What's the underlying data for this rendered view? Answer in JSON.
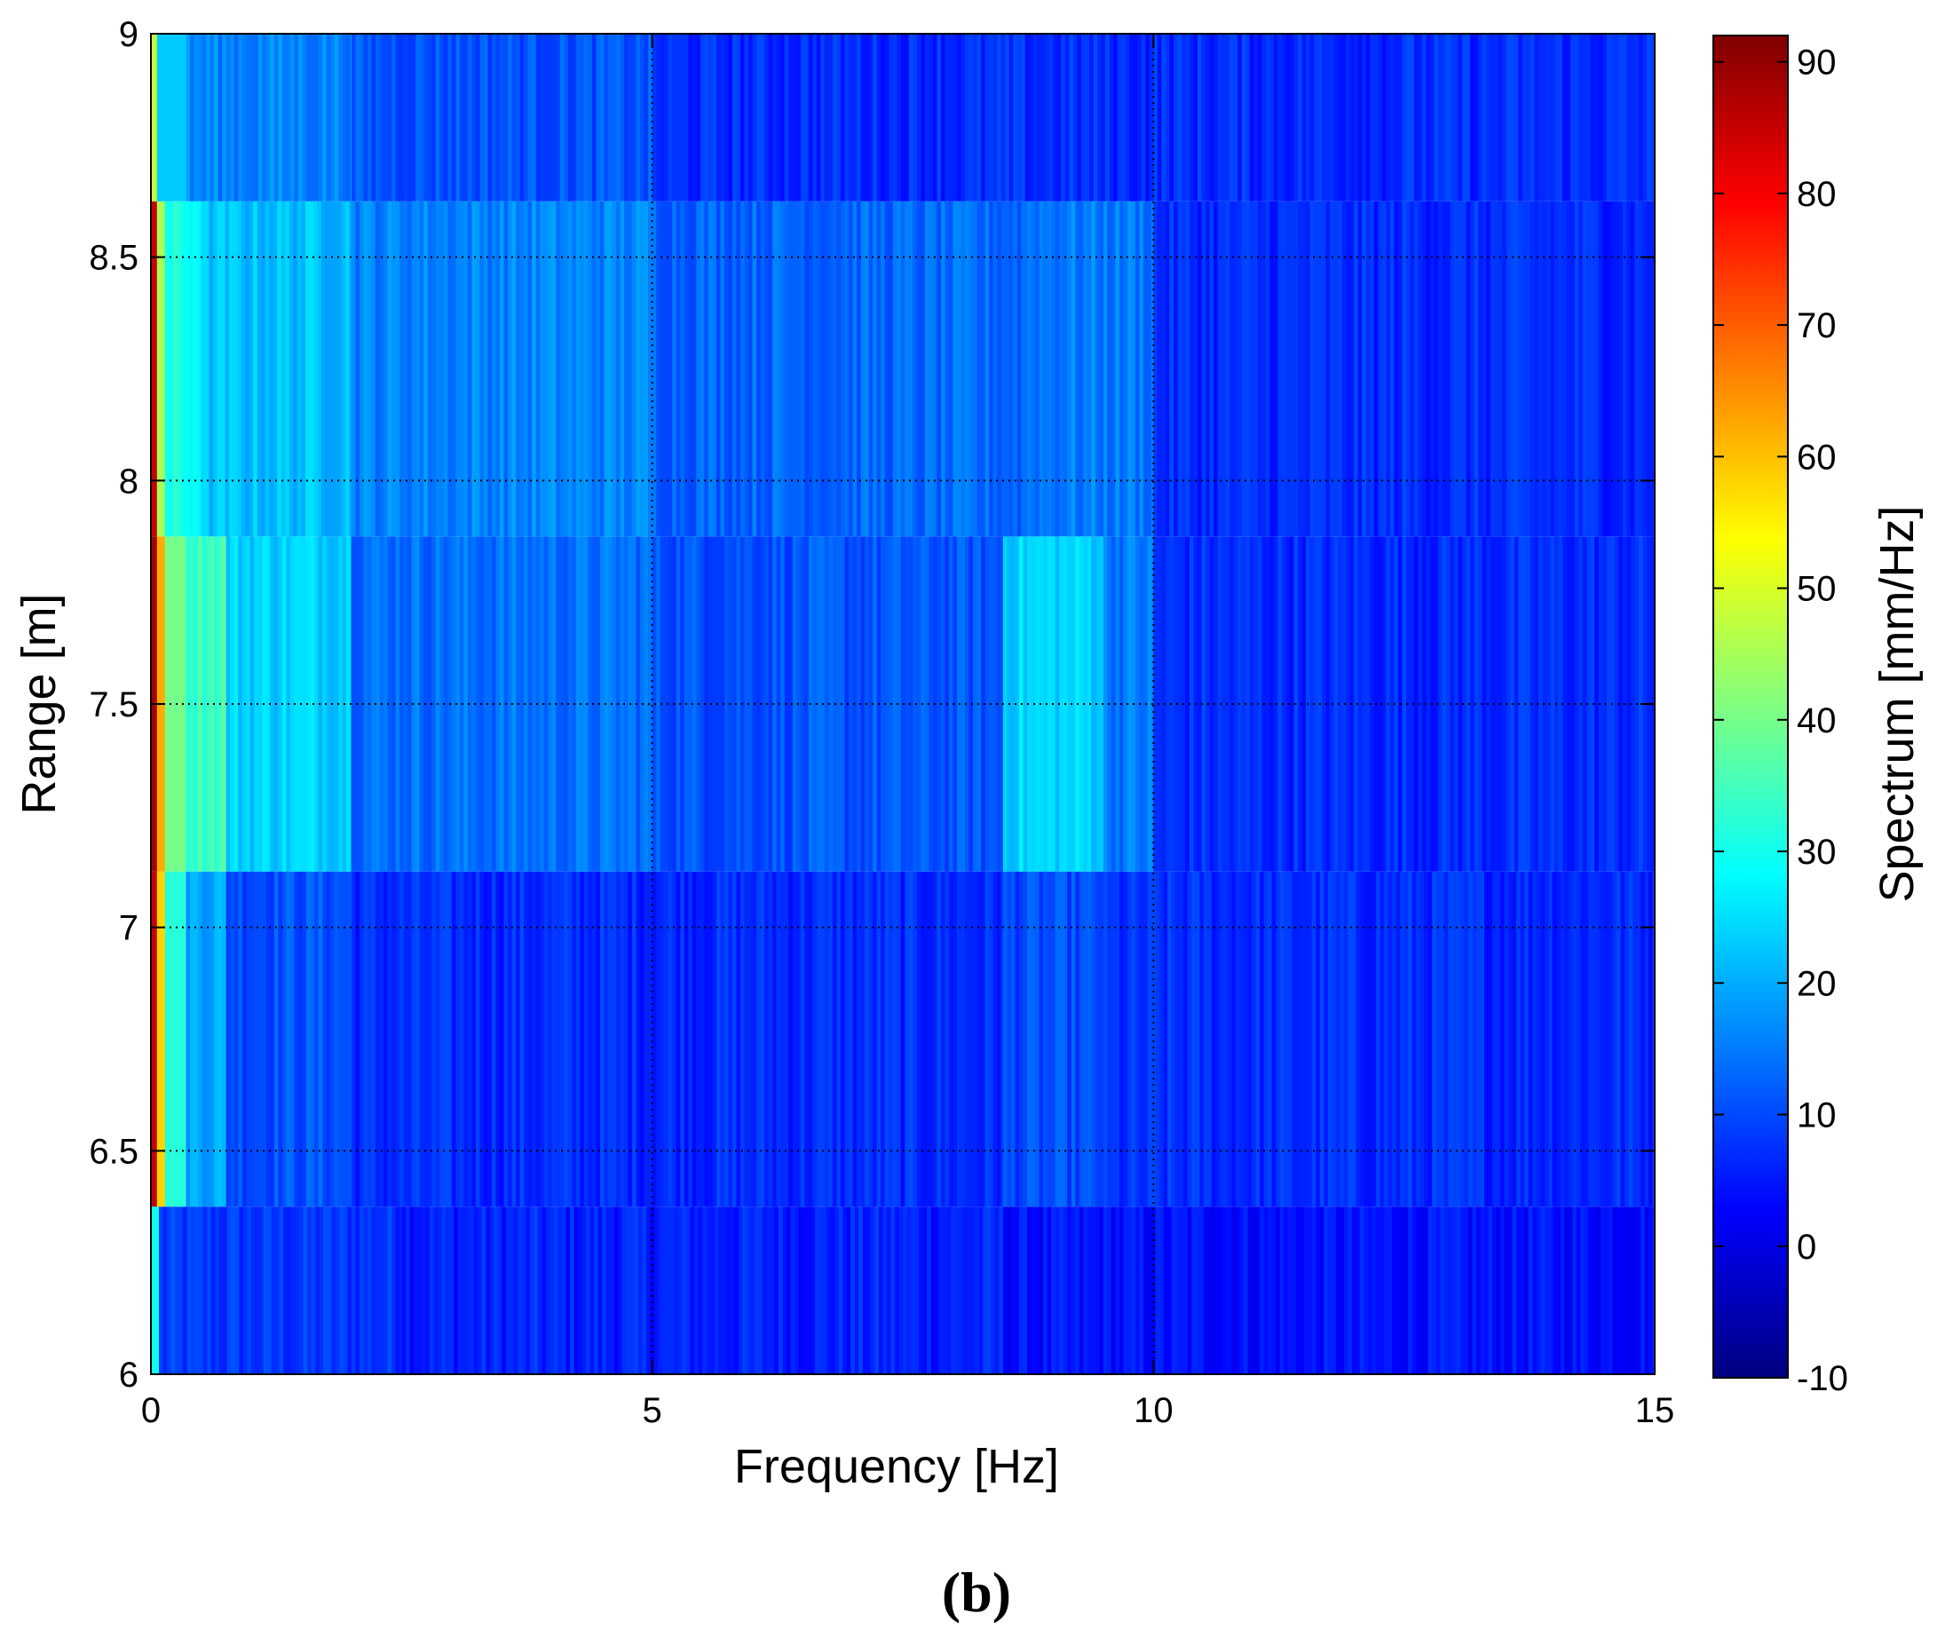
{
  "chart_data": {
    "type": "heatmap",
    "title": "",
    "xlabel": "Frequency [Hz]",
    "ylabel": "Range [m]",
    "colorbar_label": "Spectrum [mm/Hz]",
    "panel_label": "(b)",
    "xlim": [
      0,
      15
    ],
    "ylim": [
      6,
      9
    ],
    "clim": [
      -10,
      92
    ],
    "xticks": [
      0,
      5,
      10,
      15
    ],
    "xtick_labels": [
      "0",
      "5",
      "10",
      "15"
    ],
    "yticks": [
      6,
      6.5,
      7,
      7.5,
      8,
      8.5,
      9
    ],
    "ytick_labels": [
      "6",
      "6.5",
      "7",
      "7.5",
      "8",
      "8.5",
      "9"
    ],
    "colorbar_ticks": [
      -10,
      0,
      10,
      20,
      30,
      40,
      50,
      60,
      70,
      80,
      90
    ],
    "colorbar_tick_labels": [
      "-10",
      "0",
      "10",
      "20",
      "30",
      "40",
      "50",
      "60",
      "70",
      "80",
      "90"
    ],
    "grid": true,
    "colormap": "jet",
    "range_bins": [
      {
        "y_start": 6.0,
        "y_end": 6.375,
        "segments": [
          [
            0,
            0.08,
            30
          ],
          [
            0.08,
            2.5,
            8
          ],
          [
            2.5,
            8.5,
            6
          ],
          [
            8.5,
            15,
            4
          ]
        ]
      },
      {
        "y_start": 6.375,
        "y_end": 7.125,
        "segments": [
          [
            0,
            0.06,
            85
          ],
          [
            0.06,
            0.14,
            58
          ],
          [
            0.14,
            0.35,
            32
          ],
          [
            0.35,
            0.75,
            20
          ],
          [
            0.75,
            2.0,
            11
          ],
          [
            2.0,
            8.5,
            7
          ],
          [
            8.5,
            9.5,
            10
          ],
          [
            9.5,
            15,
            7
          ]
        ]
      },
      {
        "y_start": 7.125,
        "y_end": 7.875,
        "segments": [
          [
            0,
            0.06,
            88
          ],
          [
            0.06,
            0.14,
            62
          ],
          [
            0.14,
            0.35,
            40
          ],
          [
            0.35,
            0.75,
            35
          ],
          [
            0.75,
            2.0,
            24
          ],
          [
            2.0,
            5.0,
            14
          ],
          [
            5.0,
            8.5,
            11
          ],
          [
            8.5,
            9.5,
            24
          ],
          [
            9.5,
            10.0,
            15
          ],
          [
            10.0,
            15,
            7
          ]
        ]
      },
      {
        "y_start": 7.875,
        "y_end": 8.625,
        "segments": [
          [
            0,
            0.06,
            85
          ],
          [
            0.06,
            0.14,
            45
          ],
          [
            0.14,
            0.5,
            30
          ],
          [
            0.5,
            2.0,
            22
          ],
          [
            2.0,
            5.0,
            16
          ],
          [
            5.0,
            8.7,
            13
          ],
          [
            8.7,
            10.0,
            15
          ],
          [
            10.0,
            15,
            7
          ]
        ]
      },
      {
        "y_start": 8.625,
        "y_end": 9.0,
        "segments": [
          [
            0,
            0.06,
            48
          ],
          [
            0.06,
            0.35,
            23
          ],
          [
            0.35,
            2.0,
            16
          ],
          [
            2.0,
            5.0,
            11
          ],
          [
            5.0,
            15,
            7
          ]
        ]
      }
    ]
  }
}
